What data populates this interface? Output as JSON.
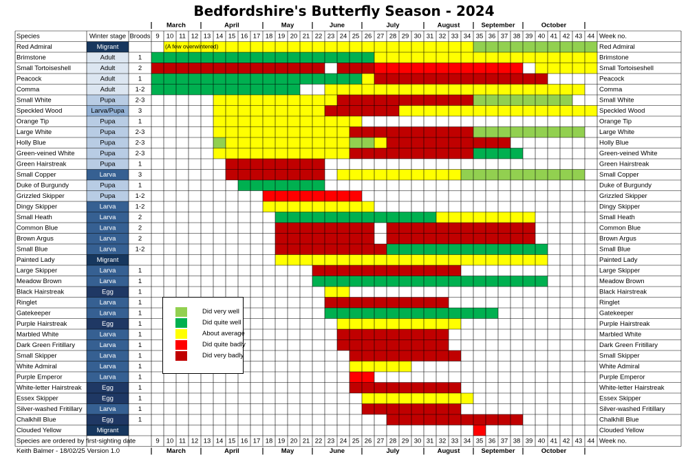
{
  "chart_data": {
    "type": "table",
    "title": "Bedfordshire's Butterfly Season - 2024",
    "header_labels": {
      "species": "Species",
      "winter_stage": "Winter stage",
      "broods": "Broods",
      "week_no": "Week no."
    },
    "weeks": [
      9,
      10,
      11,
      12,
      13,
      14,
      15,
      16,
      17,
      18,
      19,
      20,
      21,
      22,
      23,
      24,
      25,
      26,
      27,
      28,
      29,
      30,
      31,
      32,
      33,
      34,
      35,
      36,
      37,
      38,
      39,
      40,
      41,
      42,
      43,
      44
    ],
    "months": [
      {
        "name": "March",
        "weeks": [
          9,
          13
        ]
      },
      {
        "name": "April",
        "weeks": [
          13,
          18
        ]
      },
      {
        "name": "May",
        "weeks": [
          18,
          22
        ]
      },
      {
        "name": "June",
        "weeks": [
          22,
          26
        ]
      },
      {
        "name": "July",
        "weeks": [
          26,
          31
        ]
      },
      {
        "name": "August",
        "weeks": [
          31,
          35
        ]
      },
      {
        "name": "September",
        "weeks": [
          35,
          39
        ]
      },
      {
        "name": "October",
        "weeks": [
          39,
          44
        ]
      }
    ],
    "legend": [
      {
        "code": 1,
        "label": "Did very well",
        "color": "#92d050"
      },
      {
        "code": 2,
        "label": "Did quite well",
        "color": "#00b050"
      },
      {
        "code": 3,
        "label": "About average",
        "color": "#ffff00"
      },
      {
        "code": 4,
        "label": "Did quite badly",
        "color": "#ff0000"
      },
      {
        "code": 5,
        "label": "Did very badly",
        "color": "#c00000"
      }
    ],
    "stage_colors": {
      "Migrant": "#17375e",
      "Adult": "#dce6f1",
      "Pupa": "#b8cce4",
      "Larva/Pupa": "#95b3d7",
      "Larva": "#366092",
      "Egg": "#1f3864"
    },
    "stage_text_colors": {
      "Migrant": "#ffffff",
      "Adult": "#000000",
      "Pupa": "#000000",
      "Larva/Pupa": "#000000",
      "Larva": "#ffffff",
      "Egg": "#ffffff"
    },
    "annotations": [
      {
        "species": "Red Admiral",
        "week": 10,
        "text": "(A few overwintered)"
      }
    ],
    "species": [
      {
        "name": "Red Admiral",
        "stage": "Migrant",
        "broods": "",
        "segments": [
          [
            10,
            34,
            3
          ],
          [
            35,
            44,
            1
          ]
        ]
      },
      {
        "name": "Brimstone",
        "stage": "Adult",
        "broods": "1",
        "segments": [
          [
            9,
            26,
            2
          ],
          [
            27,
            44,
            3
          ]
        ]
      },
      {
        "name": "Small Tortoiseshell",
        "stage": "Adult",
        "broods": "2",
        "segments": [
          [
            9,
            22,
            5
          ],
          [
            24,
            26,
            5
          ],
          [
            27,
            34,
            4
          ],
          [
            35,
            38,
            4
          ],
          [
            40,
            44,
            3
          ]
        ]
      },
      {
        "name": "Peacock",
        "stage": "Adult",
        "broods": "1",
        "segments": [
          [
            9,
            25,
            2
          ],
          [
            26,
            26,
            3
          ],
          [
            27,
            40,
            5
          ]
        ]
      },
      {
        "name": "Comma",
        "stage": "Adult",
        "broods": "1-2",
        "segments": [
          [
            9,
            20,
            2
          ],
          [
            23,
            26,
            3
          ],
          [
            27,
            43,
            3
          ]
        ]
      },
      {
        "name": "Small White",
        "stage": "Pupa",
        "broods": "2-3",
        "segments": [
          [
            14,
            23,
            3
          ],
          [
            24,
            34,
            5
          ],
          [
            35,
            42,
            1
          ]
        ]
      },
      {
        "name": "Speckled Wood",
        "stage": "Larva/Pupa",
        "broods": "3",
        "segments": [
          [
            14,
            22,
            3
          ],
          [
            23,
            28,
            5
          ],
          [
            29,
            44,
            3
          ]
        ]
      },
      {
        "name": "Orange Tip",
        "stage": "Pupa",
        "broods": "1",
        "segments": [
          [
            14,
            25,
            3
          ]
        ]
      },
      {
        "name": "Large White",
        "stage": "Pupa",
        "broods": "2-3",
        "segments": [
          [
            14,
            24,
            3
          ],
          [
            25,
            34,
            5
          ],
          [
            35,
            43,
            1
          ]
        ]
      },
      {
        "name": "Holly Blue",
        "stage": "Pupa",
        "broods": "2-3",
        "segments": [
          [
            14,
            14,
            1
          ],
          [
            15,
            24,
            3
          ],
          [
            25,
            26,
            1
          ],
          [
            27,
            27,
            3
          ],
          [
            28,
            34,
            5
          ],
          [
            35,
            37,
            5
          ]
        ]
      },
      {
        "name": "Green-veined White",
        "stage": "Pupa",
        "broods": "2-3",
        "segments": [
          [
            14,
            24,
            3
          ],
          [
            25,
            34,
            5
          ],
          [
            35,
            38,
            2
          ]
        ]
      },
      {
        "name": "Green Hairstreak",
        "stage": "Pupa",
        "broods": "1",
        "segments": [
          [
            15,
            22,
            5
          ]
        ]
      },
      {
        "name": "Small Copper",
        "stage": "Larva",
        "broods": "3",
        "segments": [
          [
            15,
            22,
            5
          ],
          [
            24,
            33,
            3
          ],
          [
            34,
            43,
            1
          ]
        ]
      },
      {
        "name": "Duke of Burgundy",
        "stage": "Pupa",
        "broods": "1",
        "segments": [
          [
            16,
            22,
            2
          ]
        ]
      },
      {
        "name": "Grizzled Skipper",
        "stage": "Pupa",
        "broods": "1-2",
        "segments": [
          [
            18,
            25,
            4
          ]
        ]
      },
      {
        "name": "Dingy Skipper",
        "stage": "Larva",
        "broods": "1-2",
        "segments": [
          [
            18,
            26,
            3
          ]
        ]
      },
      {
        "name": "Small Heath",
        "stage": "Larva",
        "broods": "2",
        "segments": [
          [
            19,
            31,
            2
          ],
          [
            32,
            39,
            3
          ]
        ]
      },
      {
        "name": "Common Blue",
        "stage": "Larva",
        "broods": "2",
        "segments": [
          [
            19,
            26,
            5
          ],
          [
            28,
            39,
            5
          ]
        ]
      },
      {
        "name": "Brown Argus",
        "stage": "Larva",
        "broods": "2",
        "segments": [
          [
            19,
            26,
            5
          ],
          [
            28,
            39,
            5
          ]
        ]
      },
      {
        "name": "Small Blue",
        "stage": "Larva",
        "broods": "1-2",
        "segments": [
          [
            19,
            27,
            5
          ],
          [
            28,
            40,
            2
          ]
        ]
      },
      {
        "name": "Painted Lady",
        "stage": "Migrant",
        "broods": "",
        "segments": [
          [
            19,
            40,
            3
          ]
        ]
      },
      {
        "name": "Large Skipper",
        "stage": "Larva",
        "broods": "1",
        "segments": [
          [
            22,
            33,
            5
          ]
        ]
      },
      {
        "name": "Meadow Brown",
        "stage": "Larva",
        "broods": "1",
        "segments": [
          [
            22,
            40,
            2
          ]
        ]
      },
      {
        "name": "Black Hairstreak",
        "stage": "Egg",
        "broods": "1",
        "segments": [
          [
            23,
            24,
            3
          ]
        ]
      },
      {
        "name": "Ringlet",
        "stage": "Larva",
        "broods": "1",
        "segments": [
          [
            23,
            32,
            5
          ]
        ]
      },
      {
        "name": "Gatekeeper",
        "stage": "Larva",
        "broods": "1",
        "segments": [
          [
            23,
            36,
            2
          ]
        ]
      },
      {
        "name": "Purple Hairstreak",
        "stage": "Egg",
        "broods": "1",
        "segments": [
          [
            24,
            33,
            3
          ]
        ]
      },
      {
        "name": "Marbled White",
        "stage": "Larva",
        "broods": "1",
        "segments": [
          [
            24,
            32,
            5
          ]
        ]
      },
      {
        "name": "Dark Green Fritillary",
        "stage": "Larva",
        "broods": "1",
        "segments": [
          [
            24,
            32,
            5
          ]
        ]
      },
      {
        "name": "Small Skipper",
        "stage": "Larva",
        "broods": "1",
        "segments": [
          [
            25,
            33,
            5
          ]
        ]
      },
      {
        "name": "White Admiral",
        "stage": "Larva",
        "broods": "1",
        "segments": [
          [
            25,
            29,
            3
          ]
        ]
      },
      {
        "name": "Purple Emperor",
        "stage": "Larva",
        "broods": "1",
        "segments": [
          [
            25,
            26,
            4
          ]
        ]
      },
      {
        "name": "White-letter Hairstreak",
        "stage": "Egg",
        "broods": "1",
        "segments": [
          [
            25,
            33,
            5
          ]
        ]
      },
      {
        "name": "Essex Skipper",
        "stage": "Egg",
        "broods": "1",
        "segments": [
          [
            26,
            33,
            3
          ],
          [
            34,
            34,
            3
          ]
        ]
      },
      {
        "name": "Silver-washed Fritillary",
        "stage": "Larva",
        "broods": "1",
        "segments": [
          [
            26,
            33,
            5
          ]
        ]
      },
      {
        "name": "Chalkhill Blue",
        "stage": "Egg",
        "broods": "1",
        "segments": [
          [
            28,
            38,
            5
          ]
        ]
      },
      {
        "name": "Clouded Yellow",
        "stage": "Migrant",
        "broods": "",
        "segments": [
          [
            35,
            35,
            4
          ]
        ]
      }
    ],
    "footer": {
      "note": "Species are ordered by first-sighting date",
      "author": "Keith Balmer - 18/02/25   Version 1.0"
    }
  }
}
